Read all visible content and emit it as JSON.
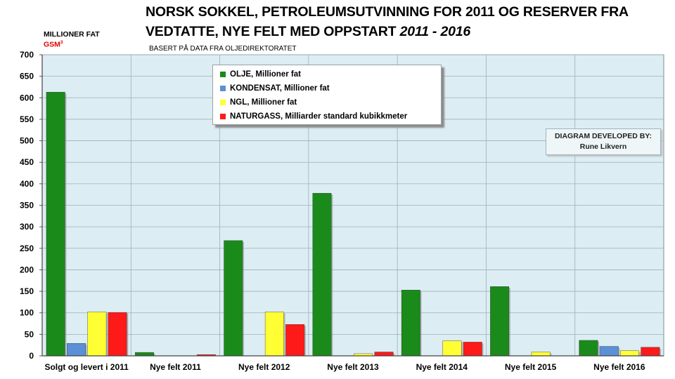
{
  "title": {
    "line1": "NORSK SOKKEL, PETROLEUMSUTVINNING FOR 2011 OG RESERVER FRA",
    "line2_main": "VEDTATTE, NYE FELT MED OPPSTART ",
    "line2_italic": "2011 - 2016"
  },
  "subtitle": "BASERT PÅ DATA FRA OLJEDIREKTORATET",
  "units": {
    "primary": "MILLIONER FAT",
    "secondary": "GSM",
    "secondary_sup": "3"
  },
  "credit": {
    "line1": "DIAGRAM DEVELOPED BY:",
    "line2": "Rune Likvern"
  },
  "chart_data": {
    "type": "bar",
    "categories": [
      "Solgt og levert i 2011",
      "Nye felt 2011",
      "Nye felt 2012",
      "Nye felt 2013",
      "Nye felt 2014",
      "Nye felt 2015",
      "Nye felt 2016"
    ],
    "series": [
      {
        "name": "OLJE, Millioner fat",
        "color": "#1a8a1a",
        "values": [
          613,
          8,
          268,
          378,
          153,
          161,
          36
        ]
      },
      {
        "name": "KONDENSAT, Millioner fat",
        "color": "#5b8fd6",
        "values": [
          29,
          0,
          0,
          0,
          0,
          0,
          22
        ]
      },
      {
        "name": "NGL, Millioner fat",
        "color": "#ffff33",
        "values": [
          102,
          0,
          102,
          5,
          35,
          9,
          12
        ]
      },
      {
        "name": "NATURGASS, Milliarder standard kubikkmeter",
        "color": "#ff1a1a",
        "values": [
          101,
          3,
          73,
          9,
          32,
          0,
          20
        ]
      }
    ],
    "ylim": [
      0,
      700
    ],
    "yticks": [
      0,
      50,
      100,
      150,
      200,
      250,
      300,
      350,
      400,
      450,
      500,
      550,
      600,
      650,
      700
    ],
    "grid": true,
    "legend_position": "top-center",
    "plot_background": "#dcedf3"
  }
}
